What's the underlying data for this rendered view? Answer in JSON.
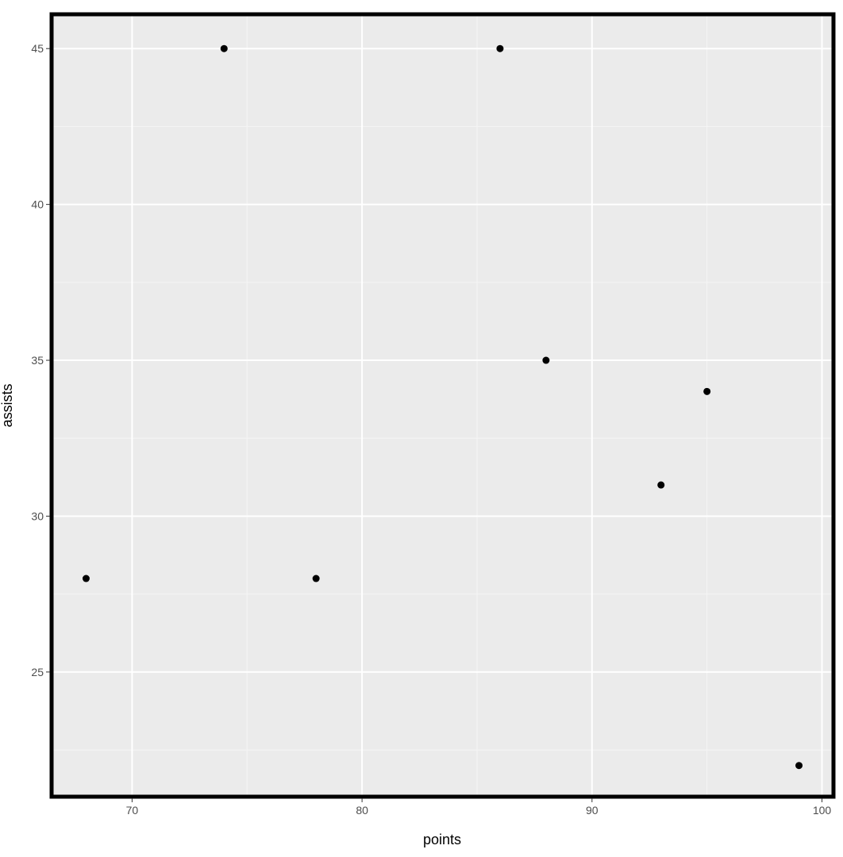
{
  "chart_data": {
    "type": "scatter",
    "title": "",
    "xlabel": "points",
    "ylabel": "assists",
    "xlim": [
      66.5,
      100.5
    ],
    "ylim": [
      21,
      46.1
    ],
    "x_ticks": [
      70,
      80,
      90,
      100
    ],
    "y_ticks": [
      25,
      30,
      35,
      40,
      45
    ],
    "grid": true,
    "series": [
      {
        "points": [
          {
            "x": 68,
            "y": 28
          },
          {
            "x": 74,
            "y": 45
          },
          {
            "x": 78,
            "y": 28
          },
          {
            "x": 86,
            "y": 45
          },
          {
            "x": 88,
            "y": 35
          },
          {
            "x": 93,
            "y": 31
          },
          {
            "x": 95,
            "y": 34
          },
          {
            "x": 99,
            "y": 22
          }
        ]
      }
    ]
  },
  "colors": {
    "panel_background": "#ebebeb",
    "grid_major": "#ffffff",
    "grid_minor": "#f5f5f5",
    "point": "#000000",
    "panel_border": "#000000",
    "tick_label": "#4d4d4d"
  }
}
